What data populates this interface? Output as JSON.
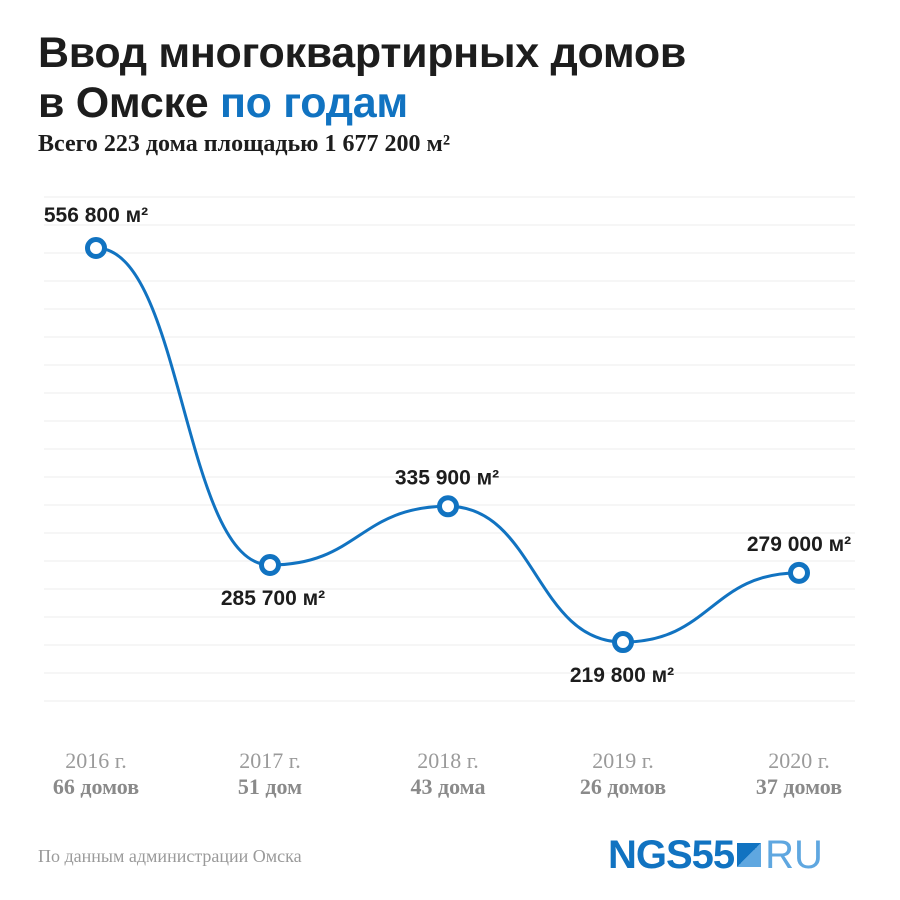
{
  "header": {
    "title_line1": "Ввод многоквартирных домов",
    "title_line2_plain": "в Омске",
    "title_line2_accent": "по годам",
    "subtitle": "Всего 223 дома площадью 1 677 200 м²"
  },
  "chart_data": {
    "type": "line",
    "categories": [
      "2016 г.",
      "2017 г.",
      "2018 г.",
      "2019 г.",
      "2020 г."
    ],
    "houses": [
      "66 домов",
      "51 дом",
      "43 дома",
      "26 домов",
      "37 домов"
    ],
    "values": [
      556800,
      285700,
      335900,
      219800,
      279000
    ],
    "value_labels": [
      "556 800 м²",
      "285 700 м²",
      "335 900 м²",
      "219 800 м²",
      "279 000 м²"
    ],
    "grid": true,
    "line_color": "#1173c1"
  },
  "footer": {
    "source": "По данным администрации Омска",
    "logo_brand": "NGS55",
    "logo_domain": "RU"
  }
}
